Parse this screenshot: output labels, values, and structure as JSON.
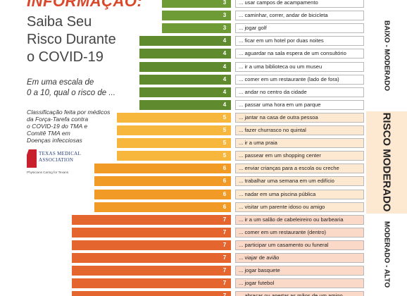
{
  "header": {
    "title": "INFORMAÇÃO:",
    "subtitle_lines": [
      "Saiba Seu",
      "Risco Durante",
      "o COVID-19"
    ],
    "question_lines": [
      "Em uma escala de",
      "0 a 10, qual o risco de ..."
    ],
    "note_lines": [
      "Classificação feita por médicos",
      "da Força-Tarefa contra",
      "o COVID-19 do TMA e",
      "Comitê TMA em",
      "Doenças infecciosas"
    ],
    "logo_lines": [
      "TEXAS MEDICAL",
      "ASSOCIATION"
    ],
    "logo_tagline": "Physicians Caring for Texans",
    "logo_icon": "texas-state-icon"
  },
  "categories": [
    {
      "label": "BAIXO - MODERADO",
      "band": "#ffffff"
    },
    {
      "label": "RISCO MODERADO",
      "band": "#fde8d2"
    },
    {
      "label": "MODERADO - ALTO",
      "band": "#ffffff"
    }
  ],
  "colors": {
    "score3": "#6e9b35",
    "score4": "#5f8a2e",
    "score5": "#f6b73c",
    "score6": "#f19a26",
    "score7": "#e4652d",
    "low_text_bg": "#ffffff",
    "moderate_text_bg": "#fde8d2",
    "high_text_bg": "#fbd9c8"
  },
  "activities": [
    {
      "score": "3",
      "label": "... usar campos de acampamento"
    },
    {
      "score": "3",
      "label": "... caminhar, correr, andar de bicicleta"
    },
    {
      "score": "3",
      "label": "... jogar golf"
    },
    {
      "score": "4",
      "label": "... ficar em um hotel por duas noites"
    },
    {
      "score": "4",
      "label": "... aguardar na sala espera de um consultório"
    },
    {
      "score": "4",
      "label": "... ir a uma biblioteca ou um museu"
    },
    {
      "score": "4",
      "label": "... comer em um restaurante (lado de fora)"
    },
    {
      "score": "4",
      "label": "... andar no centro da cidade"
    },
    {
      "score": "4",
      "label": "... passar uma hora em um parque"
    },
    {
      "score": "5",
      "label": "... jantar na casa de outra pessoa"
    },
    {
      "score": "5",
      "label": "... fazer churrasco no quintal"
    },
    {
      "score": "5",
      "label": "... ir a uma praia"
    },
    {
      "score": "5",
      "label": "... passear em um shopping center"
    },
    {
      "score": "6",
      "label": "... enviar crianças para a escola ou creche"
    },
    {
      "score": "6",
      "label": "... trabalhar uma semana em um edifício"
    },
    {
      "score": "6",
      "label": "... nadar em uma piscina pública"
    },
    {
      "score": "6",
      "label": "... visitar um parente idoso ou amigo"
    },
    {
      "score": "7",
      "label": "... ir a um salão de cabeleireiro ou barbearia"
    },
    {
      "score": "7",
      "label": "... comer em um restaurante (dentro)"
    },
    {
      "score": "7",
      "label": "... participar um casamento ou funeral"
    },
    {
      "score": "7",
      "label": "... viajar de avião"
    },
    {
      "score": "7",
      "label": "... jogar basquete"
    },
    {
      "score": "7",
      "label": "... jogar futebol"
    },
    {
      "score": "7",
      "label": "... abraçar ou apertar as mãos de um amigo"
    }
  ]
}
